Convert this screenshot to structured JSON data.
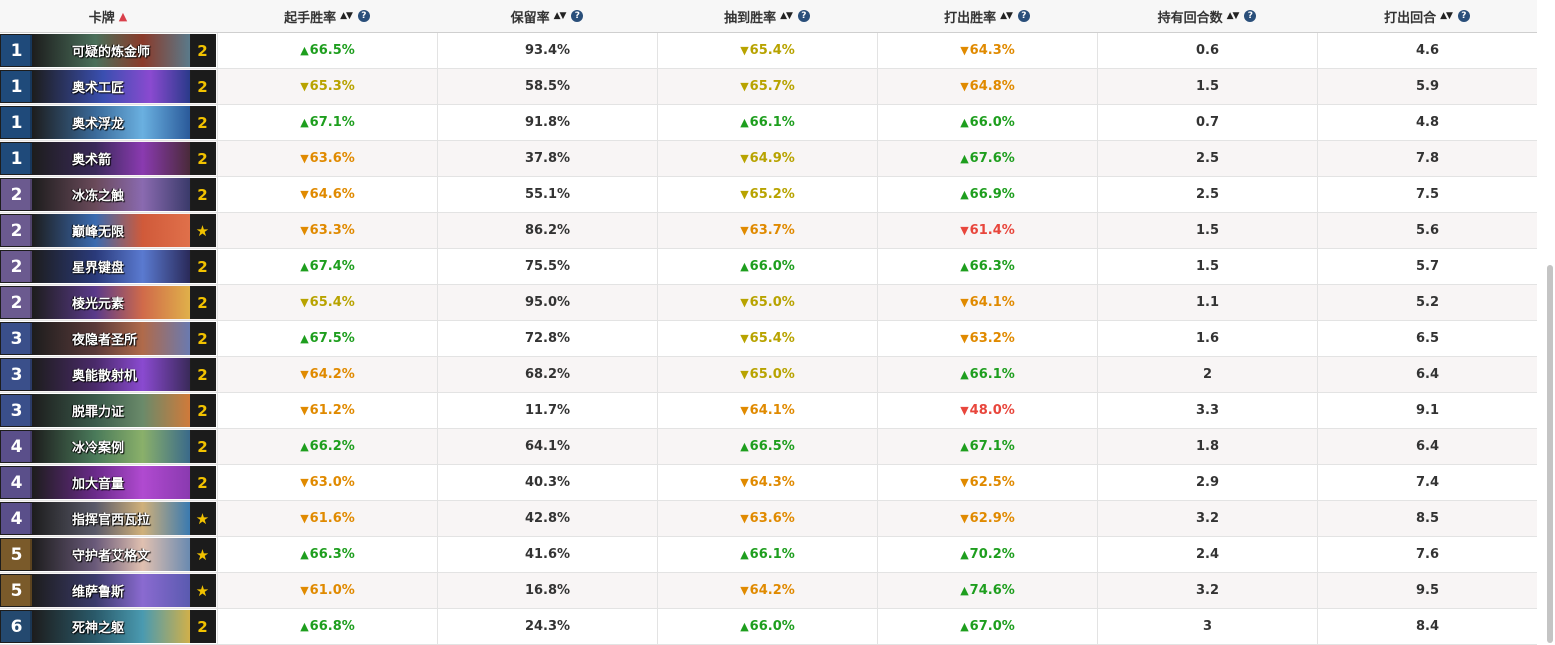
{
  "header": {
    "card": "卡牌",
    "mulligan_wr": "起手胜率",
    "keep_rate": "保留率",
    "drawn_wr": "抽到胜率",
    "played_wr": "打出胜率",
    "turns_held": "持有回合数",
    "turn_played": "打出回合"
  },
  "colors": {
    "green": "#1e9e1e",
    "olive": "#b8a300",
    "orange": "#e08a00",
    "red": "#e8463c"
  },
  "rows": [
    {
      "cost": "1",
      "name": "可疑的炼金师",
      "count": "2",
      "mull": "66.5%",
      "mull_dir": "up",
      "mull_c": "green",
      "keep": "93.4%",
      "drawn": "65.4%",
      "drawn_dir": "down",
      "drawn_c": "olive",
      "played": "64.3%",
      "played_dir": "down",
      "played_c": "orange",
      "held": "0.6",
      "turn": "4.6"
    },
    {
      "cost": "1",
      "name": "奥术工匠",
      "count": "2",
      "mull": "65.3%",
      "mull_dir": "down",
      "mull_c": "olive",
      "keep": "58.5%",
      "drawn": "65.7%",
      "drawn_dir": "down",
      "drawn_c": "olive",
      "played": "64.8%",
      "played_dir": "down",
      "played_c": "orange",
      "held": "1.5",
      "turn": "5.9"
    },
    {
      "cost": "1",
      "name": "奥术浮龙",
      "count": "2",
      "mull": "67.1%",
      "mull_dir": "up",
      "mull_c": "green",
      "keep": "91.8%",
      "drawn": "66.1%",
      "drawn_dir": "up",
      "drawn_c": "green",
      "played": "66.0%",
      "played_dir": "up",
      "played_c": "green",
      "held": "0.7",
      "turn": "4.8"
    },
    {
      "cost": "1",
      "name": "奥术箭",
      "count": "2",
      "mull": "63.6%",
      "mull_dir": "down",
      "mull_c": "orange",
      "keep": "37.8%",
      "drawn": "64.9%",
      "drawn_dir": "down",
      "drawn_c": "olive",
      "played": "67.6%",
      "played_dir": "up",
      "played_c": "green",
      "held": "2.5",
      "turn": "7.8"
    },
    {
      "cost": "2",
      "name": "冰冻之触",
      "count": "2",
      "mull": "64.6%",
      "mull_dir": "down",
      "mull_c": "orange",
      "keep": "55.1%",
      "drawn": "65.2%",
      "drawn_dir": "down",
      "drawn_c": "olive",
      "played": "66.9%",
      "played_dir": "up",
      "played_c": "green",
      "held": "2.5",
      "turn": "7.5"
    },
    {
      "cost": "2",
      "name": "巅峰无限",
      "count": "★",
      "mull": "63.3%",
      "mull_dir": "down",
      "mull_c": "orange",
      "keep": "86.2%",
      "drawn": "63.7%",
      "drawn_dir": "down",
      "drawn_c": "orange",
      "played": "61.4%",
      "played_dir": "down",
      "played_c": "red",
      "held": "1.5",
      "turn": "5.6"
    },
    {
      "cost": "2",
      "name": "星界键盘",
      "count": "2",
      "mull": "67.4%",
      "mull_dir": "up",
      "mull_c": "green",
      "keep": "75.5%",
      "drawn": "66.0%",
      "drawn_dir": "up",
      "drawn_c": "green",
      "played": "66.3%",
      "played_dir": "up",
      "played_c": "green",
      "held": "1.5",
      "turn": "5.7"
    },
    {
      "cost": "2",
      "name": "棱光元素",
      "count": "2",
      "mull": "65.4%",
      "mull_dir": "down",
      "mull_c": "olive",
      "keep": "95.0%",
      "drawn": "65.0%",
      "drawn_dir": "down",
      "drawn_c": "olive",
      "played": "64.1%",
      "played_dir": "down",
      "played_c": "orange",
      "held": "1.1",
      "turn": "5.2"
    },
    {
      "cost": "3",
      "name": "夜隐者圣所",
      "count": "2",
      "mull": "67.5%",
      "mull_dir": "up",
      "mull_c": "green",
      "keep": "72.8%",
      "drawn": "65.4%",
      "drawn_dir": "down",
      "drawn_c": "olive",
      "played": "63.2%",
      "played_dir": "down",
      "played_c": "orange",
      "held": "1.6",
      "turn": "6.5"
    },
    {
      "cost": "3",
      "name": "奥能散射机",
      "count": "2",
      "mull": "64.2%",
      "mull_dir": "down",
      "mull_c": "orange",
      "keep": "68.2%",
      "drawn": "65.0%",
      "drawn_dir": "down",
      "drawn_c": "olive",
      "played": "66.1%",
      "played_dir": "up",
      "played_c": "green",
      "held": "2",
      "turn": "6.4"
    },
    {
      "cost": "3",
      "name": "脱罪力证",
      "count": "2",
      "mull": "61.2%",
      "mull_dir": "down",
      "mull_c": "orange",
      "keep": "11.7%",
      "drawn": "64.1%",
      "drawn_dir": "down",
      "drawn_c": "orange",
      "played": "48.0%",
      "played_dir": "down",
      "played_c": "red",
      "held": "3.3",
      "turn": "9.1"
    },
    {
      "cost": "4",
      "name": "冰冷案例",
      "count": "2",
      "mull": "66.2%",
      "mull_dir": "up",
      "mull_c": "green",
      "keep": "64.1%",
      "drawn": "66.5%",
      "drawn_dir": "up",
      "drawn_c": "green",
      "played": "67.1%",
      "played_dir": "up",
      "played_c": "green",
      "held": "1.8",
      "turn": "6.4"
    },
    {
      "cost": "4",
      "name": "加大音量",
      "count": "2",
      "mull": "63.0%",
      "mull_dir": "down",
      "mull_c": "orange",
      "keep": "40.3%",
      "drawn": "64.3%",
      "drawn_dir": "down",
      "drawn_c": "orange",
      "played": "62.5%",
      "played_dir": "down",
      "played_c": "orange",
      "held": "2.9",
      "turn": "7.4"
    },
    {
      "cost": "4",
      "name": "指挥官西瓦拉",
      "count": "★",
      "mull": "61.6%",
      "mull_dir": "down",
      "mull_c": "orange",
      "keep": "42.8%",
      "drawn": "63.6%",
      "drawn_dir": "down",
      "drawn_c": "orange",
      "played": "62.9%",
      "played_dir": "down",
      "played_c": "orange",
      "held": "3.2",
      "turn": "8.5"
    },
    {
      "cost": "5",
      "name": "守护者艾格文",
      "count": "★",
      "mull": "66.3%",
      "mull_dir": "up",
      "mull_c": "green",
      "keep": "41.6%",
      "drawn": "66.1%",
      "drawn_dir": "up",
      "drawn_c": "green",
      "played": "70.2%",
      "played_dir": "up",
      "played_c": "green",
      "held": "2.4",
      "turn": "7.6"
    },
    {
      "cost": "5",
      "name": "维萨鲁斯",
      "count": "★",
      "mull": "61.0%",
      "mull_dir": "down",
      "mull_c": "orange",
      "keep": "16.8%",
      "drawn": "64.2%",
      "drawn_dir": "down",
      "drawn_c": "orange",
      "played": "74.6%",
      "played_dir": "up",
      "played_c": "green",
      "held": "3.2",
      "turn": "9.5"
    },
    {
      "cost": "6",
      "name": "死神之躯",
      "count": "2",
      "mull": "66.8%",
      "mull_dir": "up",
      "mull_c": "green",
      "keep": "24.3%",
      "drawn": "66.0%",
      "drawn_dir": "up",
      "drawn_c": "green",
      "played": "67.0%",
      "played_dir": "up",
      "played_c": "green",
      "held": "3",
      "turn": "8.4"
    }
  ]
}
